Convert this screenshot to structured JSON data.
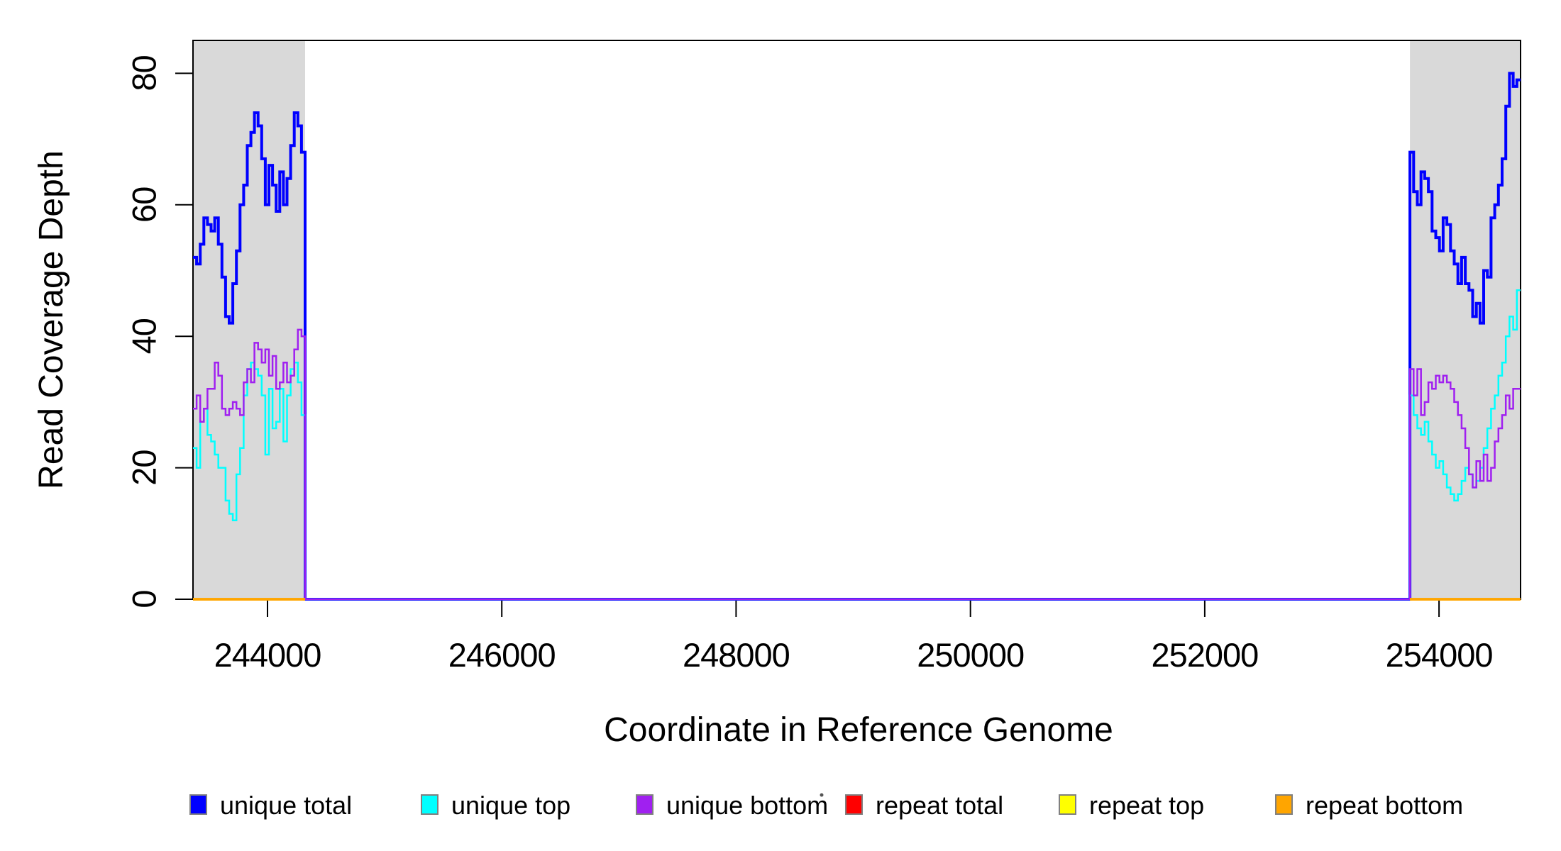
{
  "chart_data": {
    "type": "line",
    "style": "step",
    "title": "",
    "xlabel": "Coordinate in Reference Genome",
    "ylabel": "Read Coverage Depth",
    "xlim": [
      243364,
      254696
    ],
    "ylim": [
      0,
      85
    ],
    "x_ticks": [
      244000,
      246000,
      248000,
      250000,
      252000,
      254000
    ],
    "y_ticks": [
      0,
      20,
      40,
      60,
      80
    ],
    "grid": false,
    "legend_position": "bottom-horizontal",
    "background_color": "#FFFFFF",
    "box_color": "#000000",
    "shaded_regions": [
      {
        "x0": 243364,
        "x1": 244321,
        "color": "#D9D9D9"
      },
      {
        "x0": 253752,
        "x1": 254696,
        "color": "#D9D9D9"
      }
    ],
    "series": [
      {
        "name": "unique total",
        "color": "#0000FF",
        "width": 4,
        "connected": true,
        "segments": [
          {
            "x0": 243364,
            "x1": 244321,
            "v": [
              52,
              51,
              54,
              58,
              57,
              56,
              58,
              54,
              49,
              43,
              42,
              48,
              53,
              60,
              63,
              69,
              71,
              74,
              72,
              67,
              60,
              66,
              63,
              59,
              65,
              60,
              64,
              69,
              74,
              72,
              68
            ]
          },
          {
            "x0": 244321,
            "x1": 253752,
            "v": [
              0
            ]
          },
          {
            "x0": 253752,
            "x1": 254696,
            "v": [
              68,
              62,
              60,
              65,
              64,
              62,
              56,
              55,
              53,
              58,
              57,
              53,
              51,
              48,
              52,
              48,
              47,
              43,
              45,
              42,
              50,
              49,
              58,
              60,
              63,
              67,
              75,
              80,
              78,
              79
            ]
          }
        ]
      },
      {
        "name": "unique top",
        "color": "#00FFFF",
        "width": 2.5,
        "connected": true,
        "segments": [
          {
            "x0": 243364,
            "x1": 244321,
            "v": [
              23,
              20,
              27,
              29,
              25,
              24,
              22,
              20,
              20,
              15,
              13,
              12,
              19,
              23,
              31,
              35,
              36,
              35,
              34,
              31,
              22,
              32,
              26,
              27,
              32,
              24,
              31,
              35,
              36,
              33,
              28
            ]
          },
          {
            "x0": 244321,
            "x1": 253752,
            "v": [
              0
            ]
          },
          {
            "x0": 253752,
            "x1": 254696,
            "v": [
              31,
              28,
              26,
              25,
              27,
              24,
              22,
              20,
              21,
              19,
              17,
              16,
              15,
              16,
              18,
              20,
              19,
              17,
              18,
              20,
              23,
              26,
              29,
              31,
              34,
              36,
              40,
              43,
              41,
              47
            ]
          }
        ]
      },
      {
        "name": "unique bottom",
        "color": "#A020F0",
        "width": 2.5,
        "connected": true,
        "segments": [
          {
            "x0": 243364,
            "x1": 244321,
            "v": [
              29,
              31,
              27,
              29,
              32,
              32,
              36,
              34,
              29,
              28,
              29,
              30,
              29,
              28,
              33,
              35,
              33,
              39,
              38,
              36,
              38,
              34,
              37,
              32,
              33,
              36,
              33,
              34,
              38,
              41,
              40
            ]
          },
          {
            "x0": 244321,
            "x1": 253752,
            "v": [
              0
            ]
          },
          {
            "x0": 253752,
            "x1": 254696,
            "v": [
              35,
              31,
              35,
              28,
              30,
              33,
              32,
              34,
              33,
              34,
              33,
              32,
              30,
              28,
              26,
              23,
              19,
              17,
              21,
              18,
              22,
              18,
              20,
              24,
              26,
              28,
              31,
              29,
              32,
              32
            ]
          }
        ]
      },
      {
        "name": "repeat total",
        "color": "#FF0000",
        "width": 3.5,
        "connected": false,
        "segments": [
          {
            "x0": 243364,
            "x1": 244321,
            "v": [
              0
            ]
          },
          {
            "x0": 253752,
            "x1": 254696,
            "v": [
              0
            ]
          }
        ]
      },
      {
        "name": "repeat top",
        "color": "#FFFF00",
        "width": 3.5,
        "connected": false,
        "segments": [
          {
            "x0": 243364,
            "x1": 244321,
            "v": [
              0
            ]
          },
          {
            "x0": 253752,
            "x1": 254696,
            "v": [
              0
            ]
          }
        ]
      },
      {
        "name": "repeat bottom",
        "color": "#FFA500",
        "width": 3.5,
        "connected": false,
        "segments": [
          {
            "x0": 243364,
            "x1": 244321,
            "v": [
              0
            ]
          },
          {
            "x0": 253752,
            "x1": 254696,
            "v": [
              0
            ]
          }
        ]
      }
    ],
    "legend": [
      {
        "label": "unique total",
        "color": "#0000FF"
      },
      {
        "label": "unique top",
        "color": "#00FFFF"
      },
      {
        "label": "unique bottom",
        "color": "#A020F0"
      },
      {
        "label": "repeat total",
        "color": "#FF0000"
      },
      {
        "label": "repeat top",
        "color": "#FFFF00"
      },
      {
        "label": "repeat bottom",
        "color": "#FFA500"
      }
    ]
  }
}
